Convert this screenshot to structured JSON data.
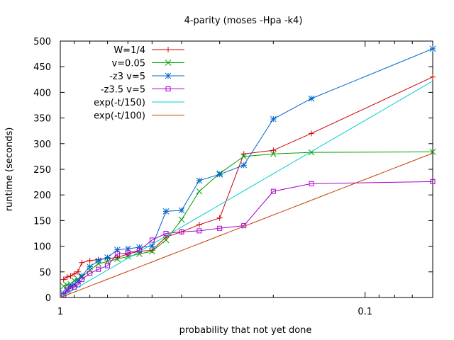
{
  "chart_data": {
    "type": "line",
    "title": "4-parity (moses -Hpa -k4)",
    "xlabel": "probability that not yet done",
    "ylabel": "runtime (seconds)",
    "x_scale": "log-reversed",
    "xlim": [
      1,
      0.06
    ],
    "ylim": [
      0,
      500
    ],
    "x_ticks": [
      {
        "value": 1,
        "label": "1"
      },
      {
        "value": 0.1,
        "label": "0.1"
      }
    ],
    "y_ticks": [
      0,
      50,
      100,
      150,
      200,
      250,
      300,
      350,
      400,
      450,
      500
    ],
    "legend_position": "top-left",
    "series": [
      {
        "name": "W=1/4",
        "color": "#cc0000",
        "marker": "plus",
        "points": [
          [
            0.975,
            35
          ],
          [
            0.95,
            40
          ],
          [
            0.925,
            42
          ],
          [
            0.9,
            46
          ],
          [
            0.875,
            50
          ],
          [
            0.85,
            68
          ],
          [
            0.8,
            72
          ],
          [
            0.75,
            74
          ],
          [
            0.7,
            76
          ],
          [
            0.65,
            78
          ],
          [
            0.6,
            85
          ],
          [
            0.55,
            90
          ],
          [
            0.5,
            92
          ],
          [
            0.45,
            118
          ],
          [
            0.4,
            128
          ],
          [
            0.35,
            142
          ],
          [
            0.3,
            155
          ],
          [
            0.25,
            280
          ],
          [
            0.2,
            287
          ],
          [
            0.15,
            320
          ],
          [
            0.06,
            430
          ]
        ]
      },
      {
        "name": "v=0.05",
        "color": "#00a000",
        "marker": "cross",
        "points": [
          [
            0.975,
            22
          ],
          [
            0.95,
            24
          ],
          [
            0.925,
            26
          ],
          [
            0.9,
            33
          ],
          [
            0.875,
            36
          ],
          [
            0.85,
            40
          ],
          [
            0.8,
            53
          ],
          [
            0.75,
            66
          ],
          [
            0.7,
            70
          ],
          [
            0.65,
            75
          ],
          [
            0.6,
            80
          ],
          [
            0.55,
            85
          ],
          [
            0.5,
            90
          ],
          [
            0.45,
            112
          ],
          [
            0.4,
            152
          ],
          [
            0.35,
            207
          ],
          [
            0.3,
            242
          ],
          [
            0.25,
            275
          ],
          [
            0.2,
            280
          ],
          [
            0.15,
            283
          ],
          [
            0.06,
            284
          ]
        ]
      },
      {
        "name": "-z3 v=5",
        "color": "#0066cc",
        "marker": "star",
        "points": [
          [
            0.975,
            8
          ],
          [
            0.95,
            14
          ],
          [
            0.925,
            22
          ],
          [
            0.9,
            25
          ],
          [
            0.875,
            32
          ],
          [
            0.85,
            42
          ],
          [
            0.8,
            60
          ],
          [
            0.75,
            72
          ],
          [
            0.7,
            78
          ],
          [
            0.65,
            93
          ],
          [
            0.6,
            95
          ],
          [
            0.55,
            98
          ],
          [
            0.5,
            100
          ],
          [
            0.45,
            168
          ],
          [
            0.4,
            170
          ],
          [
            0.35,
            228
          ],
          [
            0.3,
            240
          ],
          [
            0.25,
            258
          ],
          [
            0.2,
            348
          ],
          [
            0.15,
            388
          ],
          [
            0.06,
            485
          ]
        ]
      },
      {
        "name": "-z3.5 v=5",
        "color": "#aa00cc",
        "marker": "box",
        "points": [
          [
            0.975,
            5
          ],
          [
            0.95,
            15
          ],
          [
            0.925,
            18
          ],
          [
            0.9,
            20
          ],
          [
            0.875,
            25
          ],
          [
            0.85,
            35
          ],
          [
            0.8,
            47
          ],
          [
            0.75,
            55
          ],
          [
            0.7,
            62
          ],
          [
            0.65,
            85
          ],
          [
            0.6,
            87
          ],
          [
            0.55,
            92
          ],
          [
            0.5,
            112
          ],
          [
            0.45,
            125
          ],
          [
            0.4,
            128
          ],
          [
            0.35,
            130
          ],
          [
            0.3,
            135
          ],
          [
            0.25,
            140
          ],
          [
            0.2,
            207
          ],
          [
            0.15,
            222
          ],
          [
            0.06,
            226
          ]
        ]
      },
      {
        "name": "exp(-t/150)",
        "color": "#00cccc",
        "marker": "none",
        "formula": "150*ln(1/x)"
      },
      {
        "name": "exp(-t/100)",
        "color": "#c04000",
        "marker": "none",
        "formula": "100*ln(1/x)"
      }
    ]
  }
}
